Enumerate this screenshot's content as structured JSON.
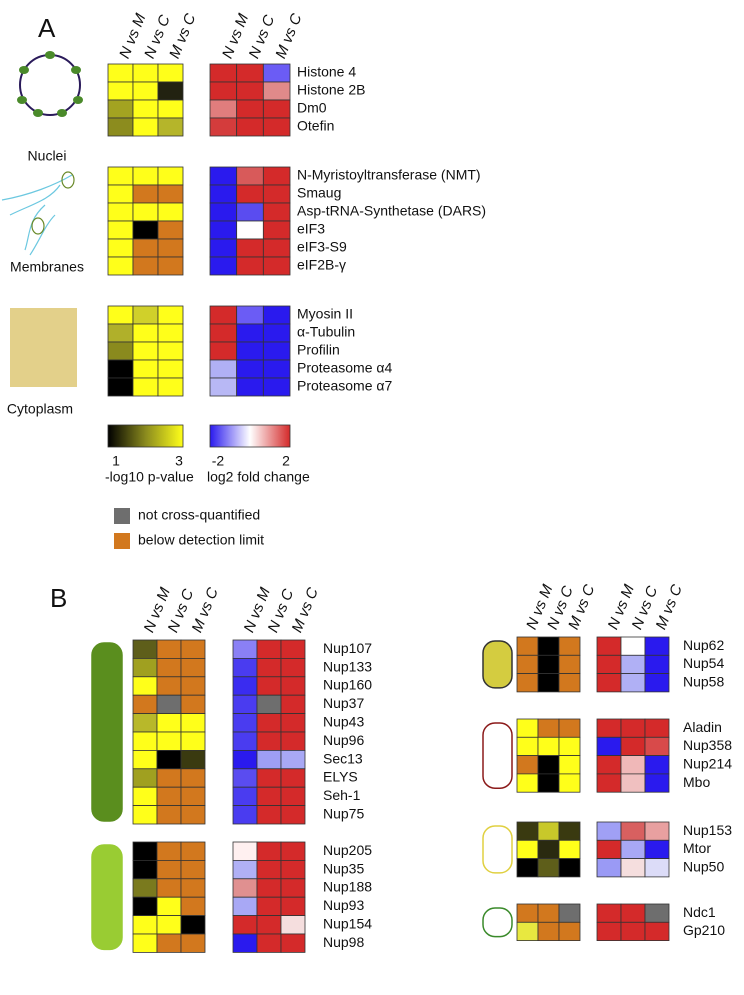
{
  "panel_a": {
    "label": "A",
    "columns": [
      "N vs M",
      "N vs C",
      "M vs C"
    ],
    "groups": [
      {
        "name": "Nuclei",
        "rows": [
          {
            "label": "Histone 4",
            "p": [
              "#ffff1a",
              "#ffff1a",
              "#ffff1a"
            ],
            "fold": [
              "#d42a2a",
              "#d42a2a",
              "#6b5cf5"
            ]
          },
          {
            "label": "Histone 2B",
            "p": [
              "#ffff1a",
              "#ffff1a",
              "#222211"
            ],
            "fold": [
              "#d42a2a",
              "#d42a2a",
              "#e08a8a"
            ]
          },
          {
            "label": "Dm0",
            "p": [
              "#a3a321",
              "#ffff1a",
              "#ffff1a"
            ],
            "fold": [
              "#e07d7d",
              "#d42a2a",
              "#d42a2a"
            ]
          },
          {
            "label": "Otefin",
            "p": [
              "#8c8c1e",
              "#ffff1a",
              "#b5b52a"
            ],
            "fold": [
              "#d43c3c",
              "#d42a2a",
              "#d42a2a"
            ]
          }
        ]
      },
      {
        "name": "Membranes",
        "rows": [
          {
            "label": "N-Myristoyltransferase (NMT)",
            "p": [
              "#ffff1a",
              "#ffff1a",
              "#ffff1a"
            ],
            "fold": [
              "#2a1aee",
              "#d85a5a",
              "#d42a2a"
            ]
          },
          {
            "label": "Smaug",
            "p": [
              "#ffff1a",
              "#d2781e",
              "#d2781e"
            ],
            "fold": [
              "#2a1aee",
              "#d42a2a",
              "#d42a2a"
            ]
          },
          {
            "label": "Asp-tRNA-Synthetase (DARS)",
            "p": [
              "#ffff1a",
              "#ffff1a",
              "#ffff1a"
            ],
            "fold": [
              "#2a1aee",
              "#5a4cf0",
              "#d42a2a"
            ]
          },
          {
            "label": "eIF3",
            "p": [
              "#ffff1a",
              "#000000",
              "#d2781e"
            ],
            "fold": [
              "#2a1aee",
              "#ffffff",
              "#d42a2a"
            ]
          },
          {
            "label": "eIF3-S9",
            "p": [
              "#ffff1a",
              "#d2781e",
              "#d2781e"
            ],
            "fold": [
              "#2a1aee",
              "#d42a2a",
              "#d42a2a"
            ]
          },
          {
            "label": "eIF2B-γ",
            "p": [
              "#ffff1a",
              "#d2781e",
              "#d2781e"
            ],
            "fold": [
              "#2a1aee",
              "#d42a2a",
              "#d42a2a"
            ]
          }
        ]
      },
      {
        "name": "Cytoplasm",
        "rows": [
          {
            "label": "Myosin II",
            "p": [
              "#ffff1a",
              "#d0d02a",
              "#ffff1a"
            ],
            "fold": [
              "#d42a2a",
              "#6b5cf5",
              "#2a1aee"
            ]
          },
          {
            "label": "α-Tubulin",
            "p": [
              "#b0b02a",
              "#ffff1a",
              "#ffff1a"
            ],
            "fold": [
              "#d42a2a",
              "#2a1aee",
              "#2a1aee"
            ]
          },
          {
            "label": "Profilin",
            "p": [
              "#8a8a1e",
              "#ffff1a",
              "#ffff1a"
            ],
            "fold": [
              "#d42a2a",
              "#2a1aee",
              "#2a1aee"
            ]
          },
          {
            "label": "Proteasome α4",
            "p": [
              "#000000",
              "#ffff1a",
              "#ffff1a"
            ],
            "fold": [
              "#b0b0f5",
              "#2a1aee",
              "#2a1aee"
            ]
          },
          {
            "label": "Proteasome α7",
            "p": [
              "#000000",
              "#ffff1a",
              "#ffff1a"
            ],
            "fold": [
              "#b8b8f5",
              "#2a1aee",
              "#2a1aee"
            ]
          }
        ]
      }
    ],
    "p_scale": {
      "min": "1",
      "max": "3",
      "title": "-log10 p-value",
      "colors": [
        "#000000",
        "#8a8a1e",
        "#ffff1a"
      ]
    },
    "fold_scale": {
      "min": "-2",
      "max": "2",
      "title": "log2 fold change",
      "colors": [
        "#2a1aee",
        "#ffffff",
        "#d42a2a"
      ]
    },
    "legend": [
      {
        "label": "not cross-quantified",
        "color": "#6e6e6e"
      },
      {
        "label": "below detection limit",
        "color": "#d2781e"
      }
    ]
  },
  "panel_b": {
    "label": "B",
    "columns": [
      "N vs M",
      "N vs C",
      "M vs C"
    ],
    "left": [
      {
        "fill": "#5a8e1e",
        "stroke": "#5a8e1e",
        "rows": [
          {
            "label": "Nup107",
            "p": [
              "#5e5e1a",
              "#d2781e",
              "#d2781e"
            ],
            "fold": [
              "#8a80f5",
              "#d42a2a",
              "#d42a2a"
            ]
          },
          {
            "label": "Nup133",
            "p": [
              "#a0a020",
              "#d2781e",
              "#d2781e"
            ],
            "fold": [
              "#4a3cf0",
              "#d42a2a",
              "#d42a2a"
            ]
          },
          {
            "label": "Nup160",
            "p": [
              "#ffff1a",
              "#d2781e",
              "#d2781e"
            ],
            "fold": [
              "#3a2cf0",
              "#d42a2a",
              "#d42a2a"
            ]
          },
          {
            "label": "Nup37",
            "p": [
              "#d2781e",
              "#6e6e6e",
              "#d2781e"
            ],
            "fold": [
              "#4a3cf0",
              "#6e6e6e",
              "#d42a2a"
            ]
          },
          {
            "label": "Nup43",
            "p": [
              "#b8b82a",
              "#ffff1a",
              "#ffff1a"
            ],
            "fold": [
              "#4a3cf0",
              "#d42a2a",
              "#d42a2a"
            ]
          },
          {
            "label": "Nup96",
            "p": [
              "#ffff1a",
              "#ffff1a",
              "#ffff1a"
            ],
            "fold": [
              "#4a3cf0",
              "#d42a2a",
              "#d42a2a"
            ]
          },
          {
            "label": "Sec13",
            "p": [
              "#ffff1a",
              "#000000",
              "#3a3a10"
            ],
            "fold": [
              "#2a1aee",
              "#9e9ef5",
              "#a8a8f5"
            ]
          },
          {
            "label": "ELYS",
            "p": [
              "#a0a020",
              "#d2781e",
              "#d2781e"
            ],
            "fold": [
              "#5a4cf0",
              "#d42a2a",
              "#d42a2a"
            ]
          },
          {
            "label": "Seh-1",
            "p": [
              "#ffff1a",
              "#d2781e",
              "#d2781e"
            ],
            "fold": [
              "#4a3cf0",
              "#d42a2a",
              "#d42a2a"
            ]
          },
          {
            "label": "Nup75",
            "p": [
              "#ffff1a",
              "#d2781e",
              "#d2781e"
            ],
            "fold": [
              "#4a3cf0",
              "#d42a2a",
              "#d42a2a"
            ]
          }
        ]
      },
      {
        "fill": "#99cc33",
        "stroke": "#99cc33",
        "rows": [
          {
            "label": "Nup205",
            "p": [
              "#000000",
              "#d2781e",
              "#d2781e"
            ],
            "fold": [
              "#fff0f0",
              "#d42a2a",
              "#d42a2a"
            ]
          },
          {
            "label": "Nup35",
            "p": [
              "#000000",
              "#d2781e",
              "#d2781e"
            ],
            "fold": [
              "#b0b0f5",
              "#d42a2a",
              "#d42a2a"
            ]
          },
          {
            "label": "Nup188",
            "p": [
              "#7a7a1e",
              "#d2781e",
              "#d2781e"
            ],
            "fold": [
              "#e09090",
              "#d42a2a",
              "#d42a2a"
            ]
          },
          {
            "label": "Nup93",
            "p": [
              "#000000",
              "#ffff1a",
              "#d2781e"
            ],
            "fold": [
              "#a8a8f5",
              "#d42a2a",
              "#d42a2a"
            ]
          },
          {
            "label": "Nup154",
            "p": [
              "#ffff1a",
              "#ffff1a",
              "#000000"
            ],
            "fold": [
              "#d42a2a",
              "#d42a2a",
              "#f5dede"
            ]
          },
          {
            "label": "Nup98",
            "p": [
              "#ffff1a",
              "#d2781e",
              "#d2781e"
            ],
            "fold": [
              "#2a1aee",
              "#d42a2a",
              "#d42a2a"
            ]
          }
        ]
      }
    ],
    "right": [
      {
        "fill": "#d4cc40",
        "stroke": "#333333",
        "rows": [
          {
            "label": "Nup62",
            "p": [
              "#d2781e",
              "#000000",
              "#d2781e"
            ],
            "fold": [
              "#d42a2a",
              "#ffffff",
              "#2a1aee"
            ]
          },
          {
            "label": "Nup54",
            "p": [
              "#d2781e",
              "#000000",
              "#d2781e"
            ],
            "fold": [
              "#d42a2a",
              "#b0b0f5",
              "#2a1aee"
            ]
          },
          {
            "label": "Nup58",
            "p": [
              "#d2781e",
              "#000000",
              "#d2781e"
            ],
            "fold": [
              "#d42a2a",
              "#b0b0f5",
              "#2a1aee"
            ]
          }
        ]
      },
      {
        "fill": "#ffffff",
        "stroke": "#8b1a1a",
        "rows": [
          {
            "label": "Aladin",
            "p": [
              "#ffff1a",
              "#d2781e",
              "#d2781e"
            ],
            "fold": [
              "#d42a2a",
              "#d42a2a",
              "#d42a2a"
            ]
          },
          {
            "label": "Nup358",
            "p": [
              "#ffff1a",
              "#ffff1a",
              "#ffff1a"
            ],
            "fold": [
              "#2a1aee",
              "#d42a2a",
              "#d84a4a"
            ]
          },
          {
            "label": "Nup214",
            "p": [
              "#d2781e",
              "#000000",
              "#ffff1a"
            ],
            "fold": [
              "#d42a2a",
              "#f0b8b8",
              "#2a1aee"
            ]
          },
          {
            "label": "Mbo",
            "p": [
              "#ffff1a",
              "#000000",
              "#ffff1a"
            ],
            "fold": [
              "#d42a2a",
              "#f0c0c0",
              "#2a1aee"
            ]
          }
        ]
      },
      {
        "fill": "#ffffff",
        "stroke": "#e0d040",
        "rows": [
          {
            "label": "Nup153",
            "p": [
              "#3a3a10",
              "#c8c82a",
              "#3a3a10"
            ],
            "fold": [
              "#a0a0f5",
              "#d86060",
              "#e8a0a0"
            ]
          },
          {
            "label": "Mtor",
            "p": [
              "#ffff1a",
              "#2a2a10",
              "#ffff1a"
            ],
            "fold": [
              "#d42a2a",
              "#a8a8f5",
              "#2a1aee"
            ]
          },
          {
            "label": "Nup50",
            "p": [
              "#000000",
              "#5e5e1a",
              "#000000"
            ],
            "fold": [
              "#9a9af5",
              "#f5dede",
              "#dcdcf8"
            ]
          }
        ]
      },
      {
        "fill": "#ffffff",
        "stroke": "#3a8a2a",
        "rows": [
          {
            "label": "Ndc1",
            "p": [
              "#d2781e",
              "#d2781e",
              "#6e6e6e"
            ],
            "fold": [
              "#d42a2a",
              "#d42a2a",
              "#6e6e6e"
            ]
          },
          {
            "label": "Gp210",
            "p": [
              "#e8e840",
              "#d2781e",
              "#d2781e"
            ],
            "fold": [
              "#d42a2a",
              "#d42a2a",
              "#d42a2a"
            ]
          }
        ]
      }
    ]
  }
}
